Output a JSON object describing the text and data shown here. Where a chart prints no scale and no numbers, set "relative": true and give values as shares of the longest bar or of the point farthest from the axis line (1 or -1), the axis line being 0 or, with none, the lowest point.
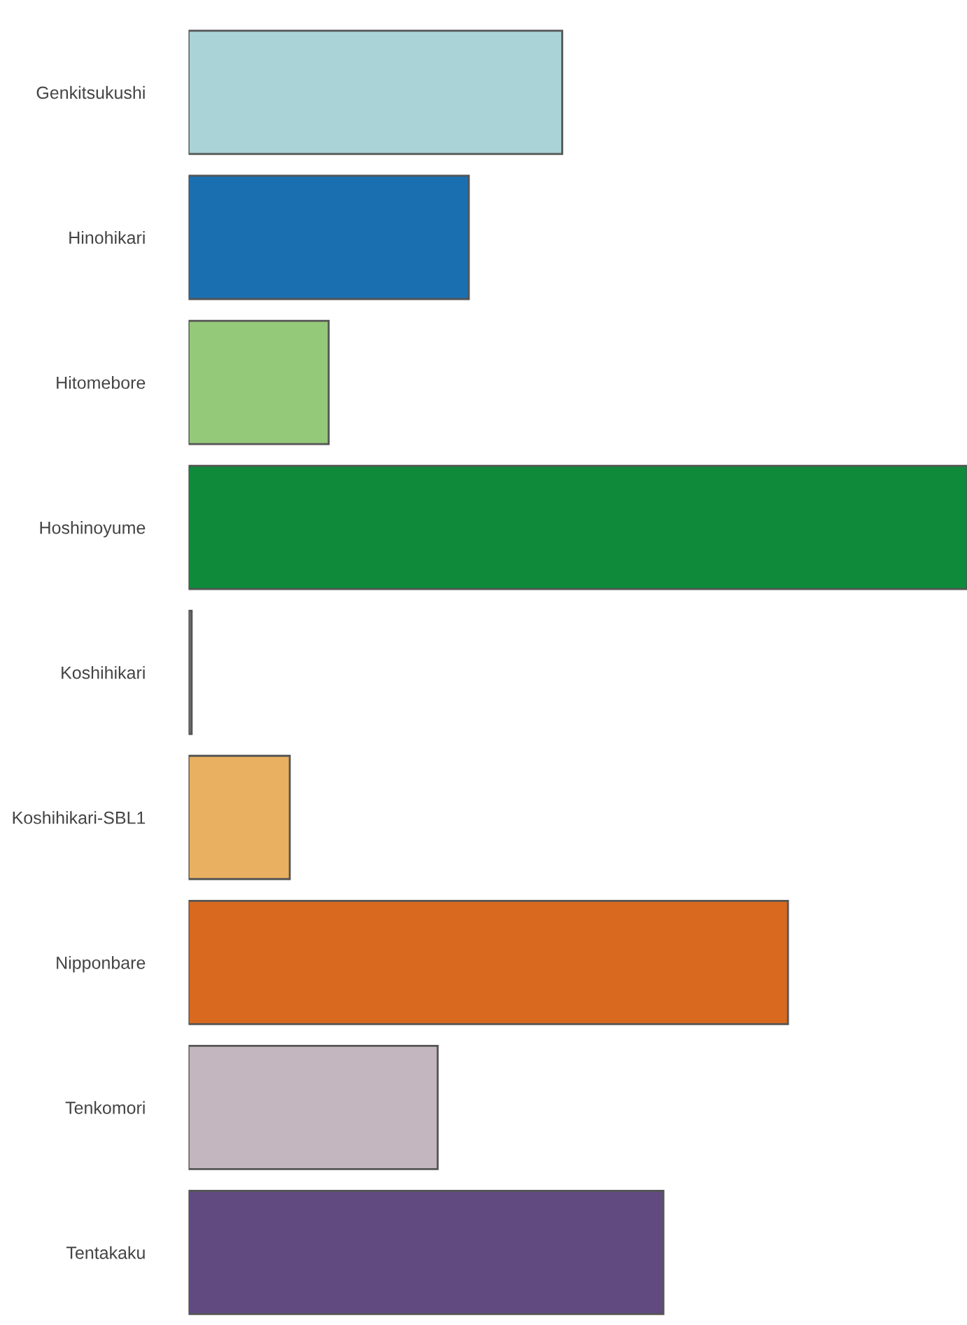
{
  "chart_data": {
    "type": "bar",
    "orientation": "horizontal",
    "relative": true,
    "categories": [
      "Genkitsukushi",
      "Hinohikari",
      "Hitomebore",
      "Hoshinoyume",
      "Koshihikari",
      "Koshihikari-SBL1",
      "Nipponbare",
      "Tenkomori",
      "Tentakaku"
    ],
    "values": [
      0.48,
      0.36,
      0.18,
      1,
      0.004,
      0.13,
      0.77,
      0.32,
      0.61
    ],
    "colors": [
      "#a9d3d6",
      "#1a6fb0",
      "#95c97a",
      "#0e8a3a",
      "#707070",
      "#e8b060",
      "#d9691f",
      "#c4b6be",
      "#604a80"
    ],
    "grid": false,
    "legend": false
  }
}
